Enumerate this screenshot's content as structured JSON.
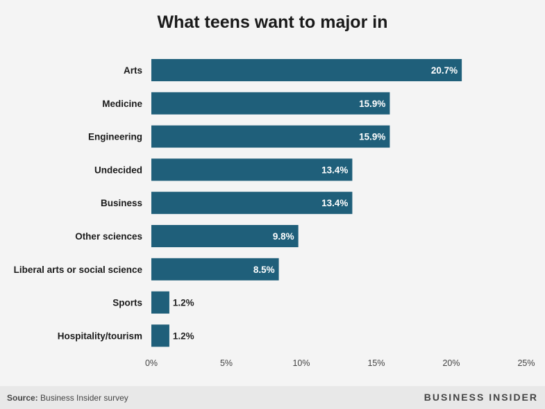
{
  "footer": {
    "source_label": "Source:",
    "source_text": "Business Insider survey",
    "brand": "BUSINESS INSIDER"
  },
  "colors": {
    "bar": "#1f5f7a",
    "bar_label_inside": "#ffffff",
    "bar_label_outside": "#222222",
    "category_label": "#1a1a1a",
    "axis_tick": "#444444",
    "background": "#f4f4f4",
    "footer_background": "#e8e8e8"
  },
  "chart_data": {
    "type": "bar",
    "orientation": "horizontal",
    "title": "What teens want to major in",
    "categories": [
      "Arts",
      "Medicine",
      "Engineering",
      "Undecided",
      "Business",
      "Other sciences",
      "Liberal arts or social science",
      "Sports",
      "Hospitality/tourism"
    ],
    "values": [
      20.7,
      15.9,
      15.9,
      13.4,
      13.4,
      9.8,
      8.5,
      1.2,
      1.2
    ],
    "value_labels": [
      "20.7%",
      "15.9%",
      "15.9%",
      "13.4%",
      "13.4%",
      "9.8%",
      "8.5%",
      "1.2%",
      "1.2%"
    ],
    "xticks": [
      "0%",
      "5%",
      "10%",
      "15%",
      "20%",
      "25%"
    ],
    "xlim": [
      0,
      25
    ],
    "xlabel": "",
    "ylabel": "",
    "grid": false
  }
}
